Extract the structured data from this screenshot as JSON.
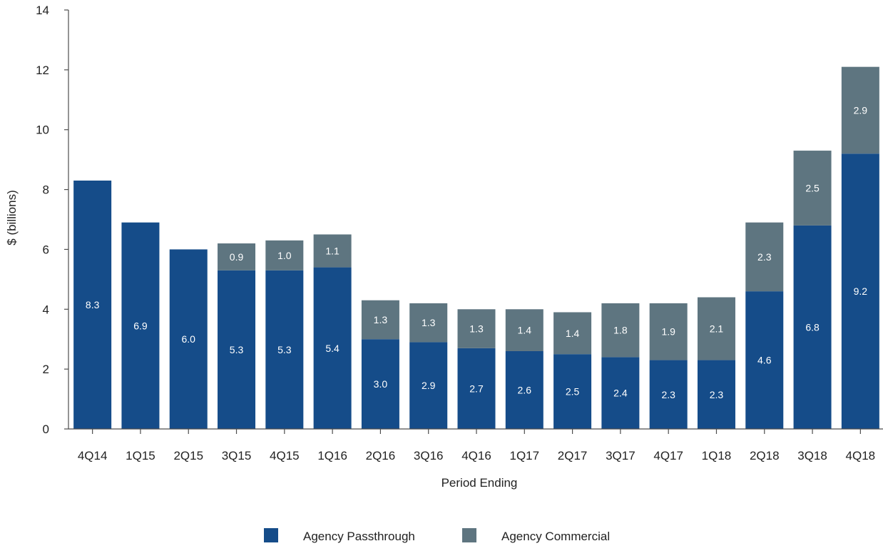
{
  "chart_data": {
    "type": "bar",
    "stacked": true,
    "xlabel": "Period Ending",
    "ylabel": "$ (billions)",
    "ylim": [
      0,
      14
    ],
    "yticks": [
      0,
      2,
      4,
      6,
      8,
      10,
      12,
      14
    ],
    "grid": false,
    "legend_position": "bottom-center",
    "categories": [
      "4Q14",
      "1Q15",
      "2Q15",
      "3Q15",
      "4Q15",
      "1Q16",
      "2Q16",
      "3Q16",
      "4Q16",
      "1Q17",
      "2Q17",
      "3Q17",
      "4Q17",
      "1Q18",
      "2Q18",
      "3Q18",
      "4Q18"
    ],
    "series": [
      {
        "name": "Agency Passthrough",
        "color": "#154c89",
        "values": [
          8.3,
          6.9,
          6.0,
          5.3,
          5.3,
          5.4,
          3.0,
          2.9,
          2.7,
          2.6,
          2.5,
          2.4,
          2.3,
          2.3,
          4.6,
          6.8,
          9.2
        ],
        "labels": [
          "8.3",
          "6.9",
          "6.0",
          "5.3",
          "5.3",
          "5.4",
          "3.0",
          "2.9",
          "2.7",
          "2.6",
          "2.5",
          "2.4",
          "2.3",
          "2.3",
          "4.6",
          "6.8",
          "9.2"
        ]
      },
      {
        "name": "Agency Commercial",
        "color": "#5e7580",
        "values": [
          0,
          0,
          0,
          0.9,
          1.0,
          1.1,
          1.3,
          1.3,
          1.3,
          1.4,
          1.4,
          1.8,
          1.9,
          2.1,
          2.3,
          2.5,
          2.9
        ],
        "labels": [
          "",
          "",
          "",
          "0.9",
          "1.0",
          "1.1",
          "1.3",
          "1.3",
          "1.3",
          "1.4",
          "1.4",
          "1.8",
          "1.9",
          "2.1",
          "2.3",
          "2.5",
          "2.9"
        ]
      }
    ]
  }
}
